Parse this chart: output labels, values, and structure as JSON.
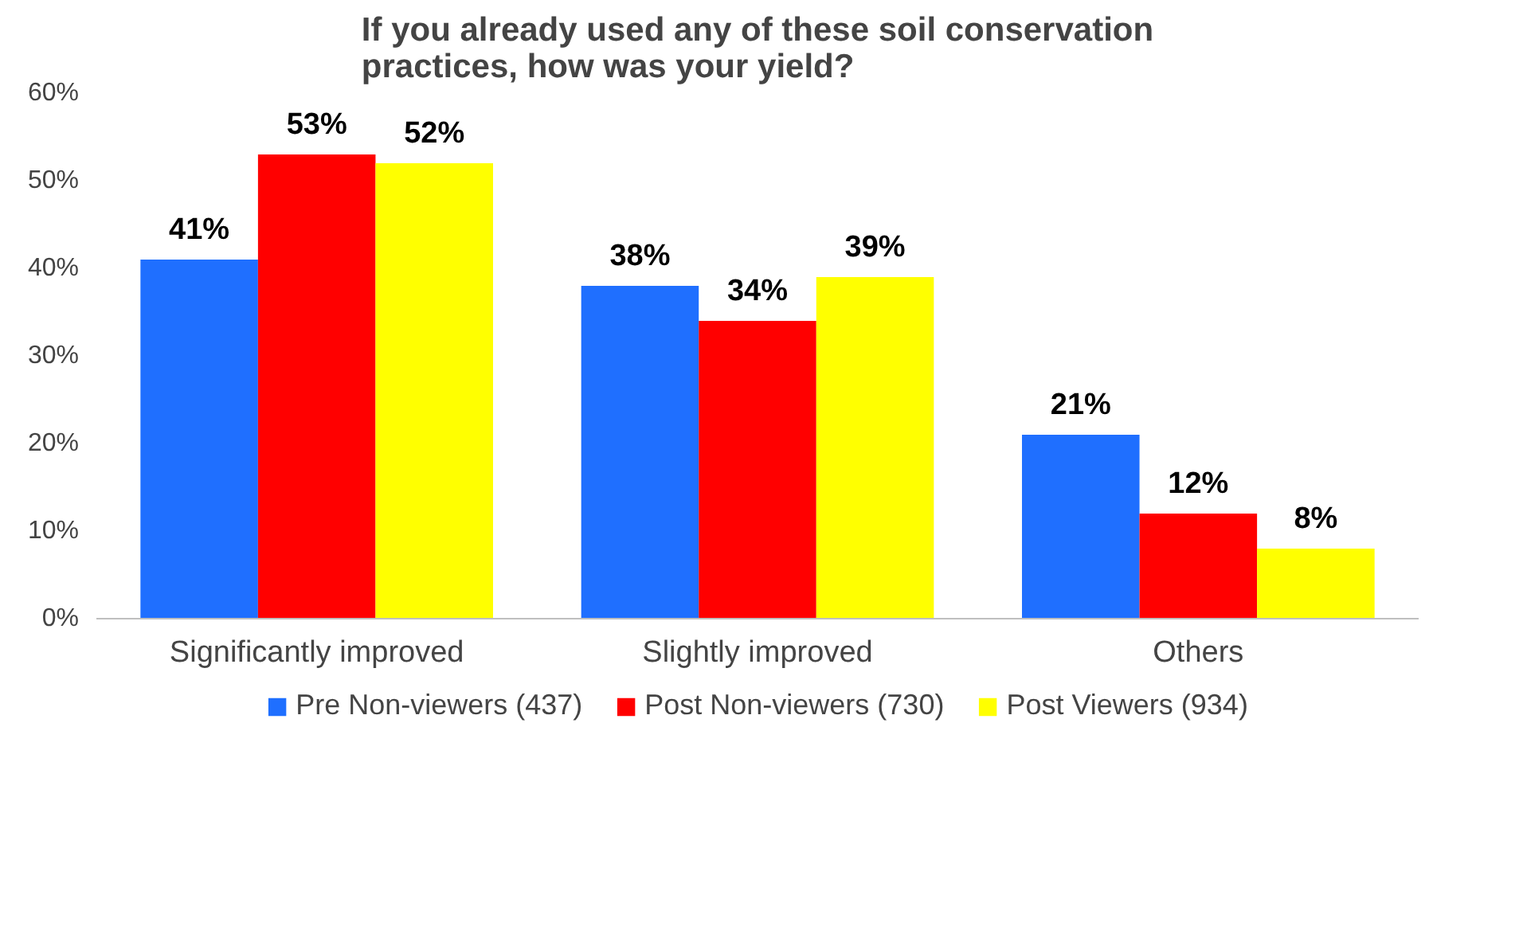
{
  "chart_data": {
    "type": "bar",
    "title": "If you already used any of these soil conservation practices, how was your yield?",
    "categories": [
      "Significantly improved",
      "Slightly improved",
      "Others"
    ],
    "series": [
      {
        "name": "Pre Non-viewers (437)",
        "color": "#1f6fff",
        "values": [
          41,
          38,
          21
        ],
        "value_labels": [
          "41%",
          "38%",
          "21%"
        ]
      },
      {
        "name": "Post Non-viewers (730)",
        "color": "#ff0000",
        "values": [
          53,
          34,
          12
        ],
        "value_labels": [
          "53%",
          "34%",
          "12%"
        ]
      },
      {
        "name": "Post Viewers (934)",
        "color": "#ffff00",
        "values": [
          52,
          39,
          8
        ],
        "value_labels": [
          "52%",
          "39%",
          "8%"
        ]
      }
    ],
    "ylim": [
      0,
      60
    ],
    "yticks": [
      {
        "value": 0,
        "label": "0%"
      },
      {
        "value": 10,
        "label": "10%"
      },
      {
        "value": 20,
        "label": "20%"
      },
      {
        "value": 30,
        "label": "30%"
      },
      {
        "value": 40,
        "label": "40%"
      },
      {
        "value": 50,
        "label": "50%"
      },
      {
        "value": 60,
        "label": "60%"
      }
    ],
    "grid": false,
    "legend": "bottom"
  }
}
